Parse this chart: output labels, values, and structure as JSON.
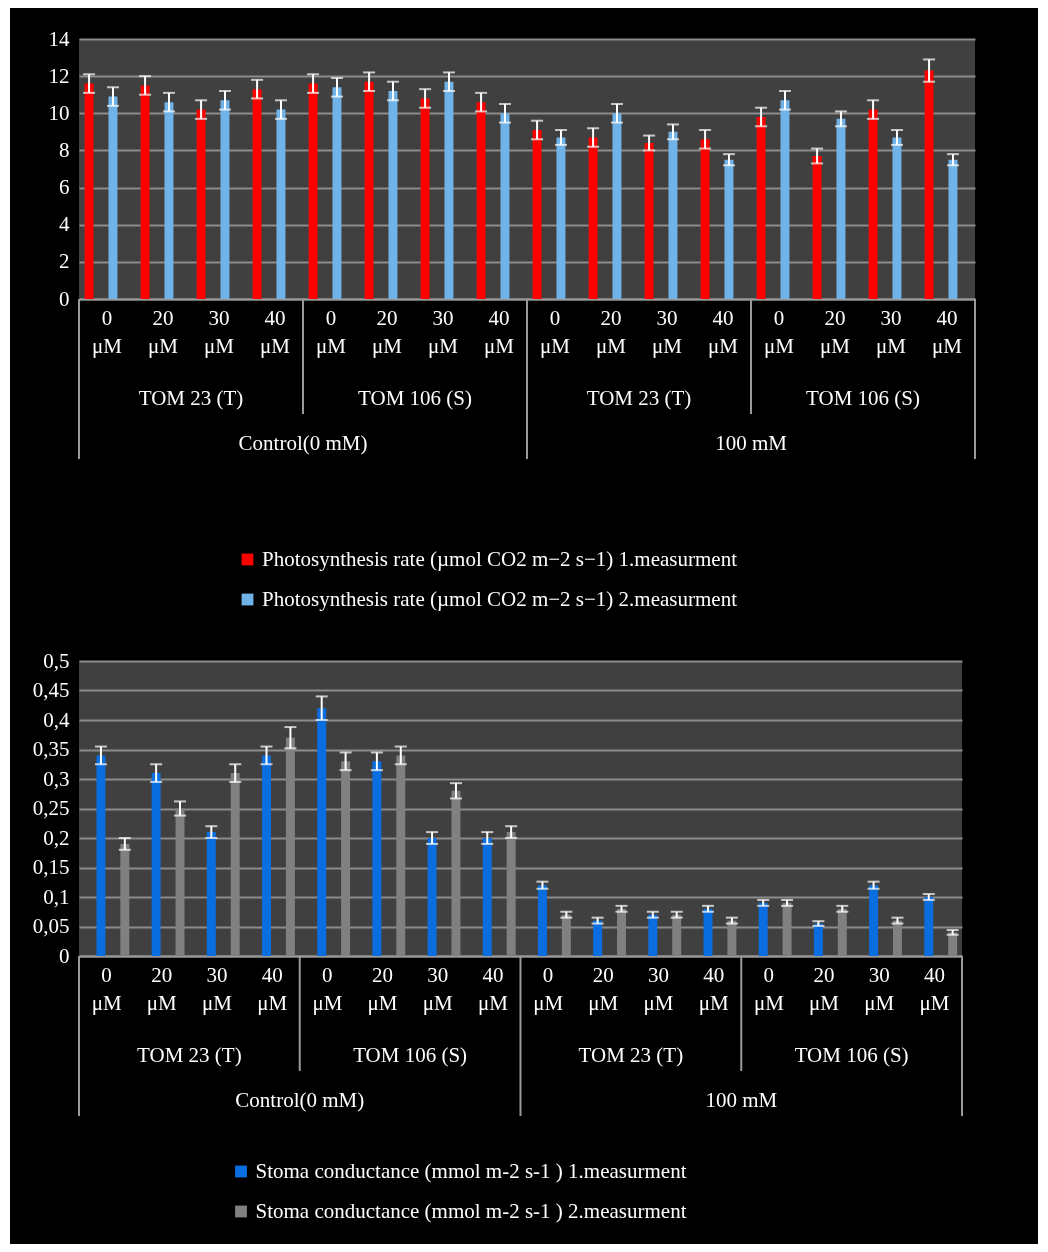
{
  "chart_data": [
    {
      "type": "bar",
      "categories": [
        "0 μM",
        "20 μM",
        "30 μM",
        "40 μM",
        "0 μM",
        "20 μM",
        "30 μM",
        "40 μM",
        "0 μM",
        "20 μM",
        "30 μM",
        "40 μM",
        "0 μM",
        "20 μM",
        "30 μM",
        "40 μM"
      ],
      "series": [
        {
          "name": "Photosynthesis rate  (µmol CO2 m−2 s−1) 1.measurment",
          "color": "#ff0000",
          "values": [
            11.6,
            11.5,
            10.2,
            11.3,
            11.6,
            11.7,
            10.8,
            10.6,
            9.1,
            8.7,
            8.4,
            8.6,
            9.8,
            7.7,
            10.2,
            12.3
          ],
          "errors": [
            0.5,
            0.5,
            0.5,
            0.5,
            0.5,
            0.5,
            0.5,
            0.5,
            0.5,
            0.5,
            0.4,
            0.5,
            0.5,
            0.4,
            0.5,
            0.6
          ]
        },
        {
          "name": "Photosynthesis rate  (µmol CO2 m−2 s−1) 2.measurment",
          "color": "#6fb3e8",
          "values": [
            10.9,
            10.6,
            10.7,
            10.2,
            11.4,
            11.2,
            11.7,
            10.0,
            8.7,
            10.0,
            9.0,
            7.5,
            10.7,
            9.7,
            8.7,
            7.5
          ],
          "errors": [
            0.5,
            0.5,
            0.5,
            0.5,
            0.5,
            0.5,
            0.5,
            0.5,
            0.4,
            0.5,
            0.4,
            0.3,
            0.5,
            0.4,
            0.4,
            0.3
          ]
        }
      ],
      "ylim": [
        0,
        14
      ],
      "yticks": [
        0,
        2,
        4,
        6,
        8,
        10,
        12,
        14
      ],
      "grid": "y",
      "legend": "bottom",
      "annotations": [
        "TOM 23 (T)",
        "TOM 106 (S)",
        "TOM 23 (T)",
        "TOM 106 (S)",
        "Control(0 mM)",
        "100 mM"
      ]
    },
    {
      "type": "bar",
      "categories": [
        "0 μM",
        "20 μM",
        "30 μM",
        "40 μM",
        "0 μM",
        "20 μM",
        "30 μM",
        "40 μM",
        "0 μM",
        "20 μM",
        "30 μM",
        "40 μM",
        "0 μM",
        "20 μM",
        "30 μM",
        "40 μM"
      ],
      "series": [
        {
          "name": "Stoma conductance (mmol m-2 s-1 ) 1.measurment",
          "color": "#0a6ee0",
          "values": [
            0.34,
            0.31,
            0.21,
            0.34,
            0.42,
            0.33,
            0.2,
            0.2,
            0.12,
            0.06,
            0.07,
            0.08,
            0.09,
            0.055,
            0.12,
            0.1
          ],
          "errors": [
            0.015,
            0.015,
            0.01,
            0.015,
            0.02,
            0.015,
            0.01,
            0.01,
            0.006,
            0.005,
            0.005,
            0.005,
            0.005,
            0.004,
            0.006,
            0.005
          ]
        },
        {
          "name": "Stoma conductance (mmol m-2 s-1 ) 2.measurment",
          "color": "#808080",
          "values": [
            0.19,
            0.25,
            0.31,
            0.37,
            0.33,
            0.34,
            0.28,
            0.21,
            0.07,
            0.08,
            0.07,
            0.06,
            0.09,
            0.08,
            0.06,
            0.04
          ],
          "errors": [
            0.01,
            0.012,
            0.015,
            0.018,
            0.015,
            0.015,
            0.013,
            0.01,
            0.005,
            0.005,
            0.005,
            0.005,
            0.005,
            0.005,
            0.005,
            0.004
          ]
        }
      ],
      "ylim": [
        0,
        0.5
      ],
      "yticks": [
        {
          "value": 0,
          "label": "0"
        },
        {
          "value": 0.05,
          "label": "0,05"
        },
        {
          "value": 0.1,
          "label": "0,1"
        },
        {
          "value": 0.15,
          "label": "0,15"
        },
        {
          "value": 0.2,
          "label": "0,2"
        },
        {
          "value": 0.25,
          "label": "0,25"
        },
        {
          "value": 0.3,
          "label": "0,3"
        },
        {
          "value": 0.35,
          "label": "0,35"
        },
        {
          "value": 0.4,
          "label": "0,4"
        },
        {
          "value": 0.45,
          "label": "0,45"
        },
        {
          "value": 0.5,
          "label": "0,5"
        }
      ],
      "grid": "y",
      "legend": "bottom",
      "annotations": [
        "TOM 23 (T)",
        "TOM 106 (S)",
        "TOM 23 (T)",
        "TOM 106 (S)",
        "Control(0 mM)",
        "100 mM"
      ]
    }
  ]
}
